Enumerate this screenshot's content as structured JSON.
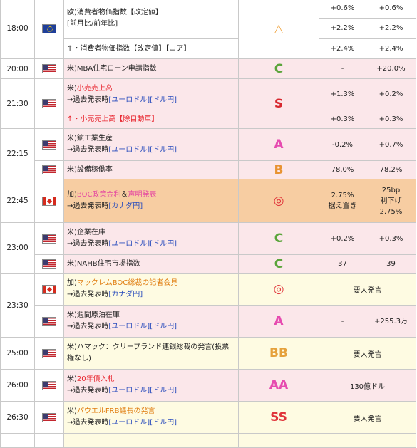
{
  "rows": {
    "r1800": {
      "time": "18:00",
      "flag": "eu-flag-icon",
      "ev1": "欧)消費者物価指数【改定値】",
      "ev1b": "[前月比/前年比]",
      "rank": "△",
      "v1a": "+0.6%",
      "v2a": "+0.6%",
      "v1b": "+2.2%",
      "v2b": "+2.2%",
      "ev2": "↑・消費者物価指数【改定値】【コア】",
      "v1c": "+2.4%",
      "v2c": "+2.4%"
    },
    "r2000": {
      "time": "20:00",
      "ev": "米)MBA住宅ローン申請指数",
      "rank": "C",
      "v1": "-",
      "v2": "+20.0%"
    },
    "r2130": {
      "time": "21:30",
      "prefix": "米)",
      "title": "小売売上高",
      "past": "→過去発表時",
      "pair1": "[ユーロドル]",
      "pair2": "[ドル円]",
      "rank": "S",
      "v1a": "+1.3%",
      "v2a": "+0.2%",
      "ev2": "↑・小売売上高【除自動車】",
      "v1b": "+0.3%",
      "v2b": "+0.3%"
    },
    "r2215": {
      "time": "22:15",
      "ev": "米)鉱工業生産",
      "past": "→過去発表時",
      "pair1": "[ユーロドル]",
      "pair2": "[ドル円]",
      "rank": "A",
      "v1": "-0.2%",
      "v2": "+0.7%",
      "ev2": "米)設備稼働率",
      "rank2": "B",
      "v1b": "78.0%",
      "v2b": "78.2%"
    },
    "r2245": {
      "time": "22:45",
      "prefix": "加)",
      "title1": "BOC政策金利",
      "amp": "＆",
      "title2": "声明発表",
      "past": "→過去発表時",
      "pair": "[カナダ円]",
      "rank": "◎",
      "v1a": "2.75%",
      "v1b": "据え置き",
      "v2a": "25bp",
      "v2b": "利下げ",
      "v2c": "2.75%"
    },
    "r2300": {
      "time": "23:00",
      "ev": "米)企業在庫",
      "past": "→過去発表時",
      "pair1": "[ユーロドル]",
      "pair2": "[ドル円]",
      "rank": "C",
      "v1": "+0.2%",
      "v2": "+0.3%",
      "ev2": "米)NAHB住宅市場指数",
      "rank2": "C",
      "v1b": "37",
      "v2b": "39"
    },
    "r2330": {
      "time": "23:30",
      "prefix": "加)",
      "title": "マックレムBOC総裁の記者会見",
      "past": "→過去発表時",
      "pair": "[カナダ円]",
      "rank": "◎",
      "note": "要人発言",
      "ev2": "米)週間原油在庫",
      "past2": "→過去発表時",
      "pair2a": "[ユーロドル]",
      "pair2b": "[ドル円]",
      "rank2": "A",
      "v1b": "-",
      "v2b": "+255.3万"
    },
    "r2500": {
      "time": "25:00",
      "ev": "米)ハマック：クリーブランド連銀総裁の発言(投票権なし)",
      "rank": "BB",
      "note": "要人発言"
    },
    "r2600": {
      "time": "26:00",
      "prefix": "米)",
      "title": "20年債入札",
      "past": "→過去発表時",
      "pair1": "[ユーロドル]",
      "pair2": "[ドル円]",
      "rank": "AA",
      "note": "130億ドル"
    },
    "r2630": {
      "time": "26:30",
      "prefix": "米)",
      "title": "パウエルFRB議長の発言",
      "past": "→過去発表時",
      "pair1": "[ユーロドル]",
      "pair2": "[ドル円]",
      "rank": "SS",
      "note": "要人発言"
    }
  }
}
